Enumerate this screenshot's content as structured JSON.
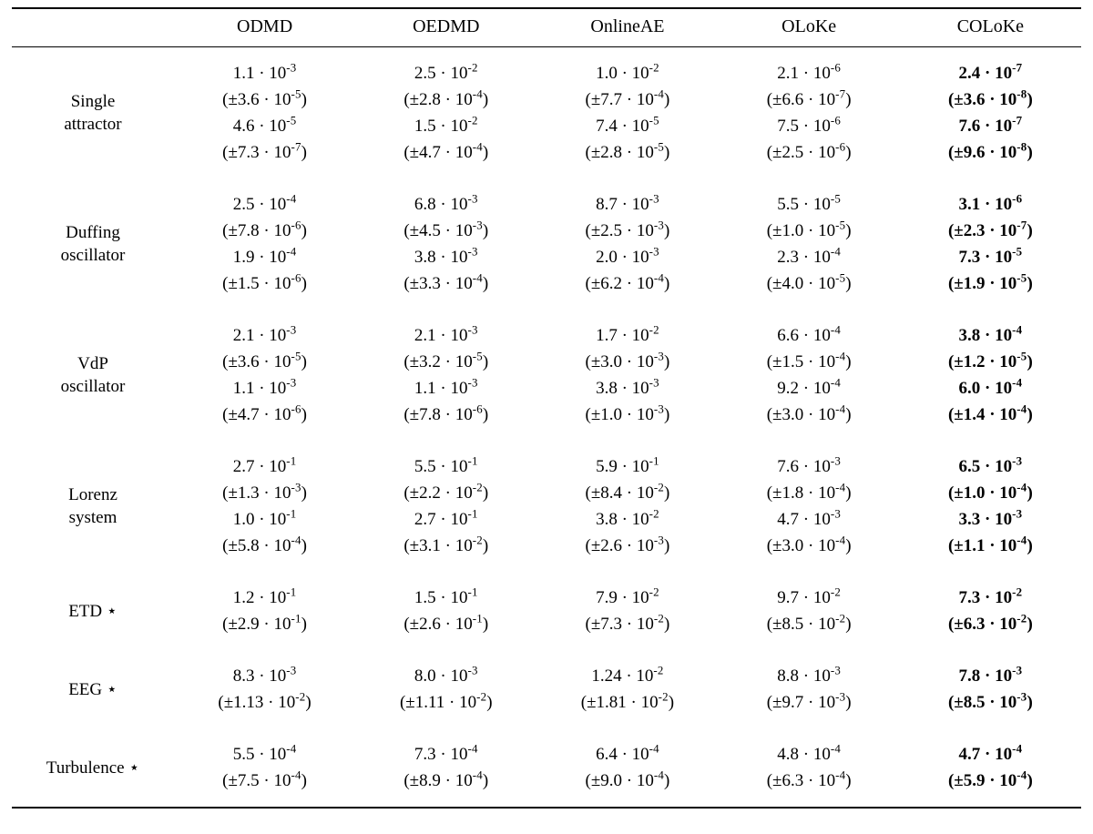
{
  "table": {
    "columns": [
      "ODMD",
      "OEDMD",
      "OnlineAE",
      "OLoKe",
      "COLoKe"
    ],
    "bold_column_index": 4,
    "corner_label": "",
    "rows": [
      {
        "label": "Single attractor",
        "label_lines": [
          "Single",
          "attractor"
        ],
        "lines": [
          [
            "1.1 · 10^{-3}",
            "2.5 · 10^{-2}",
            "1.0 · 10^{-2}",
            "2.1 · 10^{-6}",
            "2.4 · 10^{-7}"
          ],
          [
            "(±3.6 · 10^{-5})",
            "(±2.8 · 10^{-4})",
            "(±7.7 · 10^{-4})",
            "(±6.6 · 10^{-7})",
            "(±3.6 · 10^{-8})"
          ],
          [
            "4.6 · 10^{-5}",
            "1.5 · 10^{-2}",
            "7.4 · 10^{-5}",
            "7.5 · 10^{-6}",
            "7.6 · 10^{-7}"
          ],
          [
            "(±7.3 · 10^{-7})",
            "(±4.7 · 10^{-4})",
            "(±2.8 · 10^{-5})",
            "(±2.5 · 10^{-6})",
            "(±9.6 · 10^{-8})"
          ]
        ]
      },
      {
        "label": "Duffing oscillator",
        "label_lines": [
          "Duffing",
          "oscillator"
        ],
        "lines": [
          [
            "2.5 · 10^{-4}",
            "6.8 · 10^{-3}",
            "8.7 · 10^{-3}",
            "5.5 · 10^{-5}",
            "3.1 · 10^{-6}"
          ],
          [
            "(±7.8 · 10^{-6})",
            "(±4.5 · 10^{-3})",
            "(±2.5 · 10^{-3})",
            "(±1.0 · 10^{-5})",
            "(±2.3 · 10^{-7})"
          ],
          [
            "1.9 · 10^{-4}",
            "3.8 · 10^{-3}",
            "2.0 · 10^{-3}",
            "2.3 · 10^{-4}",
            "7.3 · 10^{-5}"
          ],
          [
            "(±1.5 · 10^{-6})",
            "(±3.3 · 10^{-4})",
            "(±6.2 · 10^{-4})",
            "(±4.0 · 10^{-5})",
            "(±1.9 · 10^{-5})"
          ]
        ]
      },
      {
        "label": "VdP oscillator",
        "label_lines": [
          "VdP",
          "oscillator"
        ],
        "lines": [
          [
            "2.1 · 10^{-3}",
            "2.1 · 10^{-3}",
            "1.7 · 10^{-2}",
            "6.6 · 10^{-4}",
            "3.8 · 10^{-4}"
          ],
          [
            "(±3.6 · 10^{-5})",
            "(±3.2 · 10^{-5})",
            "(±3.0 · 10^{-3})",
            "(±1.5 · 10^{-4})",
            "(±1.2 · 10^{-5})"
          ],
          [
            "1.1 · 10^{-3}",
            "1.1 · 10^{-3}",
            "3.8 · 10^{-3}",
            "9.2 · 10^{-4}",
            "6.0 · 10^{-4}"
          ],
          [
            "(±4.7 · 10^{-6})",
            "(±7.8 · 10^{-6})",
            "(±1.0 · 10^{-3})",
            "(±3.0 · 10^{-4})",
            "(±1.4 · 10^{-4})"
          ]
        ]
      },
      {
        "label": "Lorenz system",
        "label_lines": [
          "Lorenz",
          "system"
        ],
        "lines": [
          [
            "2.7 · 10^{-1}",
            "5.5 · 10^{-1}",
            "5.9 · 10^{-1}",
            "7.6 · 10^{-3}",
            "6.5 · 10^{-3}"
          ],
          [
            "(±1.3 · 10^{-3})",
            "(±2.2 · 10^{-2})",
            "(±8.4 · 10^{-2})",
            "(±1.8 · 10^{-4})",
            "(±1.0 · 10^{-4})"
          ],
          [
            "1.0 · 10^{-1}",
            "2.7 · 10^{-1}",
            "3.8 · 10^{-2}",
            "4.7 · 10^{-3}",
            "3.3 · 10^{-3}"
          ],
          [
            "(±5.8 · 10^{-4})",
            "(±3.1 · 10^{-2})",
            "(±2.6 · 10^{-3})",
            "(±3.0 · 10^{-4})",
            "(±1.1 · 10^{-4})"
          ]
        ]
      },
      {
        "label": "ETD ⋆",
        "label_lines": [
          "ETD ⋆"
        ],
        "lines": [
          [
            "1.2 · 10^{-1}",
            "1.5 · 10^{-1}",
            "7.9 · 10^{-2}",
            "9.7 · 10^{-2}",
            "7.3 · 10^{-2}"
          ],
          [
            "(±2.9 · 10^{-1})",
            "(±2.6 · 10^{-1})",
            "(±7.3 · 10^{-2})",
            "(±8.5 · 10^{-2})",
            "(±6.3 · 10^{-2})"
          ]
        ]
      },
      {
        "label": "EEG ⋆",
        "label_lines": [
          "EEG ⋆"
        ],
        "lines": [
          [
            "8.3 · 10^{-3}",
            "8.0 · 10^{-3}",
            "1.24 · 10^{-2}",
            "8.8 · 10^{-3}",
            "7.8 · 10^{-3}"
          ],
          [
            "(±1.13 · 10^{-2})",
            "(±1.11 · 10^{-2})",
            "(±1.81 · 10^{-2})",
            "(±9.7 · 10^{-3})",
            "(±8.5 · 10^{-3})"
          ]
        ]
      },
      {
        "label": "Turbulence ⋆",
        "label_lines": [
          "Turbulence ⋆"
        ],
        "lines": [
          [
            "5.5 · 10^{-4}",
            "7.3 · 10^{-4}",
            "6.4 · 10^{-4}",
            "4.8 · 10^{-4}",
            "4.7 · 10^{-4}"
          ],
          [
            "(±7.5 · 10^{-4})",
            "(±8.9 · 10^{-4})",
            "(±9.0 · 10^{-4})",
            "(±6.3 · 10^{-4})",
            "(±5.9 · 10^{-4})"
          ]
        ]
      }
    ]
  }
}
